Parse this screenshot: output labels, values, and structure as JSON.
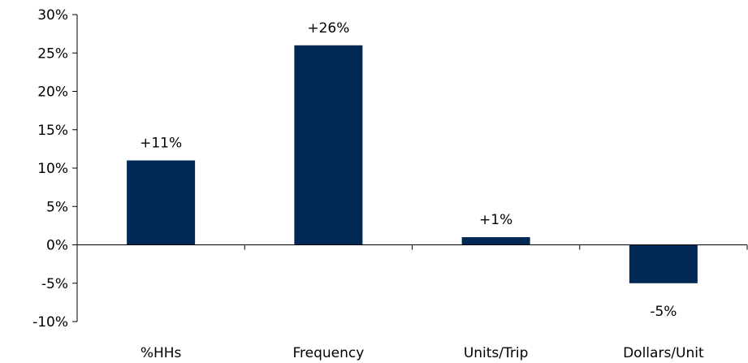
{
  "chart_data": {
    "type": "bar",
    "title": "",
    "xlabel": "",
    "ylabel": "",
    "categories": [
      "%HHs",
      "Frequency",
      "Units/Trip",
      "Dollars/Unit"
    ],
    "values": [
      11,
      26,
      1,
      -5
    ],
    "data_labels": [
      "+11%",
      "+26%",
      "+1%",
      "-5%"
    ],
    "ylim": [
      -10,
      30
    ],
    "yticks": [
      -10,
      -5,
      0,
      5,
      10,
      15,
      20,
      25,
      30
    ],
    "ytick_labels": [
      "-10%",
      "-5%",
      "0%",
      "5%",
      "10%",
      "15%",
      "20%",
      "25%",
      "30%"
    ],
    "grid": false,
    "legend": "none",
    "bar_color": "#002855"
  }
}
